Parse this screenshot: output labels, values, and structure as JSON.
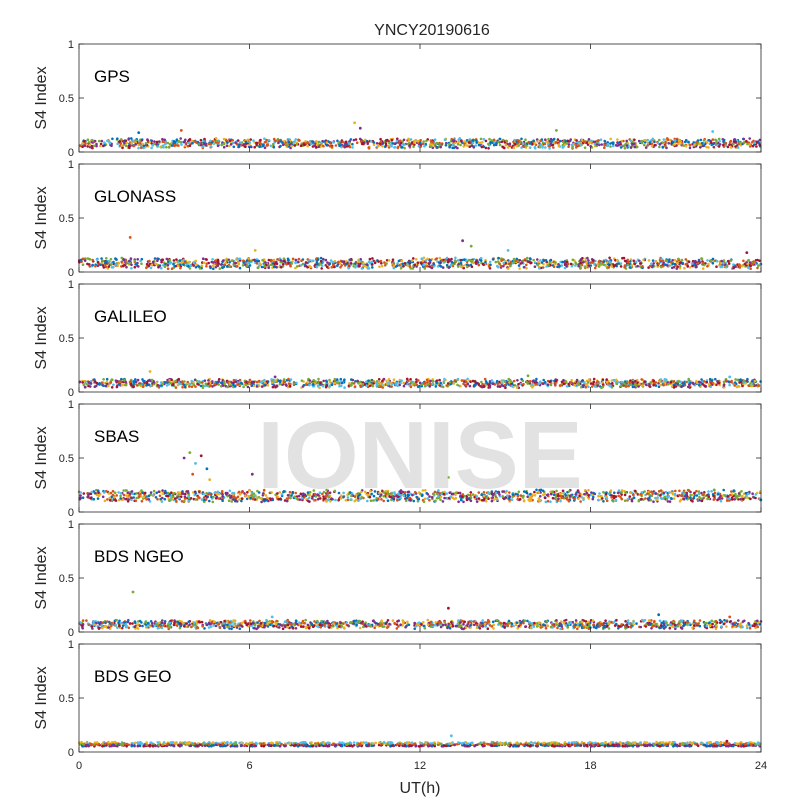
{
  "figure": {
    "title": "YNCY20190616",
    "xlabel": "UT(h)",
    "watermark": "IONISE"
  },
  "chart_data": {
    "type": "scatter",
    "title": "YNCY20190616",
    "xlabel": "UT(h)",
    "ylabel": "S4 Index",
    "xlim": [
      0,
      24
    ],
    "ylim": [
      0,
      1
    ],
    "xticks": [
      0,
      6,
      12,
      18,
      24
    ],
    "yticks": [
      0,
      0.5,
      1
    ],
    "ytick_labels": [
      "0",
      "0.5",
      "1"
    ],
    "colors": [
      "#0072BD",
      "#D95319",
      "#EDB120",
      "#7E2F8E",
      "#77AC30",
      "#4DBEEE",
      "#A2142F"
    ],
    "panels": [
      {
        "label": "GPS",
        "ylabel": "S4 Index",
        "baseline": 0.08,
        "spread": 0.035,
        "outliers": [
          [
            2.1,
            0.18
          ],
          [
            3.6,
            0.2
          ],
          [
            9.7,
            0.27
          ],
          [
            9.9,
            0.22
          ],
          [
            16.8,
            0.2
          ],
          [
            22.3,
            0.19
          ]
        ]
      },
      {
        "label": "GLONASS",
        "ylabel": "S4 Index",
        "baseline": 0.08,
        "spread": 0.04,
        "outliers": [
          [
            1.8,
            0.32
          ],
          [
            6.2,
            0.2
          ],
          [
            13.5,
            0.29
          ],
          [
            13.8,
            0.24
          ],
          [
            15.1,
            0.2
          ],
          [
            23.5,
            0.18
          ]
        ]
      },
      {
        "label": "GALILEO",
        "ylabel": "S4 Index",
        "baseline": 0.08,
        "spread": 0.03,
        "outliers": [
          [
            2.5,
            0.19
          ],
          [
            6.9,
            0.14
          ],
          [
            15.8,
            0.15
          ],
          [
            22.9,
            0.14
          ]
        ]
      },
      {
        "label": "SBAS",
        "ylabel": "S4 Index",
        "baseline": 0.15,
        "spread": 0.045,
        "outliers": [
          [
            3.7,
            0.5
          ],
          [
            3.9,
            0.55
          ],
          [
            4.1,
            0.45
          ],
          [
            4.3,
            0.52
          ],
          [
            4.5,
            0.4
          ],
          [
            4.0,
            0.35
          ],
          [
            4.6,
            0.3
          ],
          [
            6.1,
            0.35
          ],
          [
            13.0,
            0.32
          ]
        ]
      },
      {
        "label": "BDS NGEO",
        "ylabel": "S4 Index",
        "baseline": 0.07,
        "spread": 0.03,
        "outliers": [
          [
            1.9,
            0.37
          ],
          [
            6.8,
            0.14
          ],
          [
            13.0,
            0.22
          ],
          [
            20.4,
            0.16
          ],
          [
            22.9,
            0.14
          ]
        ]
      },
      {
        "label": "BDS GEO",
        "ylabel": "S4 Index",
        "baseline": 0.06,
        "spread": 0.015,
        "outliers": [
          [
            13.1,
            0.15
          ],
          [
            22.8,
            0.1
          ]
        ]
      }
    ],
    "grid": false,
    "legend": "none"
  }
}
